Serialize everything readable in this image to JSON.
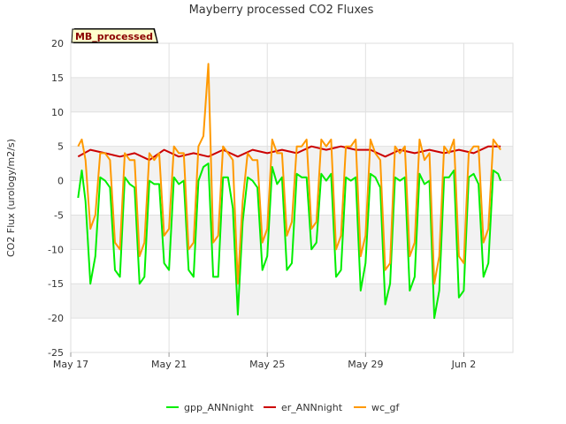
{
  "chart_data": {
    "type": "line",
    "title": "Mayberry processed CO2 Fluxes",
    "ylabel": "CO2 Flux (urology/m2/s)",
    "xlabel": "",
    "ylim": [
      -25,
      20
    ],
    "yticks": [
      -25,
      -20,
      -15,
      -10,
      -5,
      0,
      5,
      10,
      15,
      20
    ],
    "x_range_days": [
      "May 17",
      "Jun 4"
    ],
    "xticks": [
      {
        "label": "May 17",
        "day": 0
      },
      {
        "label": "May 21",
        "day": 4
      },
      {
        "label": "May 25",
        "day": 8
      },
      {
        "label": "May 29",
        "day": 12
      },
      {
        "label": "Jun 2",
        "day": 16
      }
    ],
    "grid": true,
    "legend_position": "bottom",
    "annotation": "MB_processed",
    "series": [
      {
        "name": "gpp_ANNnight",
        "color": "#00ee00",
        "day": [
          0.3,
          0.45,
          0.6,
          0.8,
          1.0,
          1.2,
          1.4,
          1.6,
          1.8,
          2.0,
          2.2,
          2.4,
          2.6,
          2.8,
          3.0,
          3.2,
          3.4,
          3.6,
          3.8,
          4.0,
          4.2,
          4.4,
          4.6,
          4.8,
          5.0,
          5.2,
          5.4,
          5.6,
          5.8,
          6.0,
          6.2,
          6.4,
          6.6,
          6.8,
          7.0,
          7.2,
          7.4,
          7.6,
          7.8,
          8.0,
          8.2,
          8.4,
          8.6,
          8.8,
          9.0,
          9.2,
          9.4,
          9.6,
          9.8,
          10.0,
          10.2,
          10.4,
          10.6,
          10.8,
          11.0,
          11.2,
          11.4,
          11.6,
          11.8,
          12.0,
          12.2,
          12.4,
          12.6,
          12.8,
          13.0,
          13.2,
          13.4,
          13.6,
          13.8,
          14.0,
          14.2,
          14.4,
          14.6,
          14.8,
          15.0,
          15.2,
          15.4,
          15.6,
          15.8,
          16.0,
          16.2,
          16.4,
          16.6,
          16.8,
          17.0,
          17.2,
          17.4,
          17.5
        ],
        "values": [
          -2.5,
          1.5,
          -3,
          -15,
          -11,
          0.5,
          0,
          -1,
          -13,
          -14,
          0.5,
          -0.5,
          -1,
          -15,
          -14,
          0,
          -0.5,
          -0.5,
          -12,
          -13,
          0.5,
          -0.5,
          0,
          -13,
          -14,
          0,
          2,
          2.5,
          -14,
          -14,
          0.5,
          0.5,
          -4,
          -19.5,
          -6,
          0.5,
          0,
          -1,
          -13,
          -11,
          2,
          -0.5,
          0.5,
          -13,
          -12,
          1,
          0.5,
          0.5,
          -10,
          -9,
          1,
          0,
          1,
          -14,
          -13,
          0.5,
          0,
          0.5,
          -16,
          -12,
          1,
          0.5,
          -1,
          -18,
          -15,
          0.5,
          0,
          0.5,
          -16,
          -14,
          1,
          -0.5,
          0,
          -20,
          -16,
          0.5,
          0.5,
          1.5,
          -17,
          -16,
          0.5,
          1,
          -0.5,
          -14,
          -12,
          1.5,
          1,
          0
        ]
      },
      {
        "name": "er_ANNnight",
        "color": "#cc0000",
        "day": [
          0.3,
          0.8,
          1.4,
          2.0,
          2.6,
          3.2,
          3.8,
          4.4,
          5.0,
          5.6,
          6.2,
          6.8,
          7.4,
          8.0,
          8.6,
          9.2,
          9.8,
          10.4,
          11.0,
          11.6,
          12.2,
          12.8,
          13.4,
          14.0,
          14.6,
          15.2,
          15.8,
          16.4,
          17.0,
          17.5
        ],
        "values": [
          3.5,
          4.5,
          4,
          3.5,
          4,
          3,
          4.5,
          3.5,
          4,
          3.5,
          4.5,
          3.5,
          4.5,
          4,
          4.5,
          4,
          5,
          4.5,
          5,
          4.5,
          4.5,
          3.5,
          4.5,
          4,
          4.5,
          4,
          4.5,
          4,
          5,
          5
        ]
      },
      {
        "name": "wc_gf",
        "color": "#ff9900",
        "day": [
          0.3,
          0.45,
          0.6,
          0.8,
          1.0,
          1.2,
          1.4,
          1.6,
          1.8,
          2.0,
          2.2,
          2.4,
          2.6,
          2.8,
          3.0,
          3.2,
          3.4,
          3.6,
          3.8,
          4.0,
          4.2,
          4.4,
          4.6,
          4.8,
          5.0,
          5.2,
          5.4,
          5.6,
          5.8,
          6.0,
          6.2,
          6.4,
          6.6,
          6.8,
          7.0,
          7.2,
          7.4,
          7.6,
          7.8,
          8.0,
          8.2,
          8.4,
          8.6,
          8.8,
          9.0,
          9.2,
          9.4,
          9.6,
          9.8,
          10.0,
          10.2,
          10.4,
          10.6,
          10.8,
          11.0,
          11.2,
          11.4,
          11.6,
          11.8,
          12.0,
          12.2,
          12.4,
          12.6,
          12.8,
          13.0,
          13.2,
          13.4,
          13.6,
          13.8,
          14.0,
          14.2,
          14.4,
          14.6,
          14.8,
          15.0,
          15.2,
          15.4,
          15.6,
          15.8,
          16.0,
          16.2,
          16.4,
          16.6,
          16.8,
          17.0,
          17.2,
          17.4,
          17.5
        ],
        "values": [
          5,
          6,
          3,
          -7,
          -5,
          4,
          4,
          3,
          -9,
          -10,
          4,
          3,
          3,
          -11,
          -9,
          4,
          3,
          4,
          -8,
          -7,
          5,
          4,
          4,
          -10,
          -9,
          5,
          6.5,
          17,
          -9,
          -8,
          5,
          4,
          3,
          -15,
          -3,
          4,
          3,
          3,
          -9,
          -7,
          6,
          4,
          4,
          -8,
          -6,
          5,
          5,
          6,
          -7,
          -6,
          6,
          5,
          6,
          -10,
          -8,
          5,
          5,
          6,
          -11,
          -8,
          6,
          4,
          3,
          -13,
          -12,
          5,
          4,
          5,
          -11,
          -9,
          6,
          3,
          4,
          -15,
          -11,
          5,
          4,
          6,
          -11,
          -12,
          4,
          5,
          5,
          -9,
          -7,
          6,
          5,
          4.5
        ]
      }
    ]
  }
}
